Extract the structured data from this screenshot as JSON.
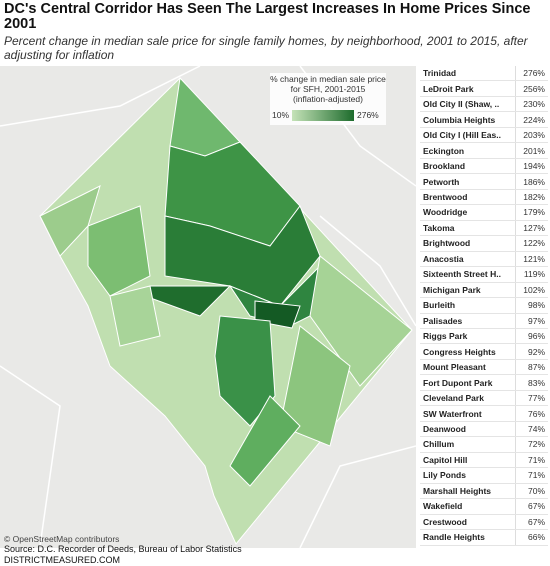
{
  "header": {
    "title": "DC's Central Corridor Has Seen The Largest Increases In Home Prices Since 2001",
    "subtitle": "Percent change in median sale price for single family homes, by neighborhood, 2001 to 2015, after adjusting for inflation"
  },
  "legend": {
    "title": [
      "% change in median sale price",
      "for SFH, 2001-2015",
      "(inflation-adjusted)"
    ],
    "min": "10%",
    "max": "276%"
  },
  "map": {
    "attribution": "© OpenStreetMap contributors"
  },
  "table": {
    "rows": [
      [
        "Trinidad",
        "276%"
      ],
      [
        "LeDroit Park",
        "256%"
      ],
      [
        "Old City II (Shaw, ..",
        "230%"
      ],
      [
        "Columbia Heights",
        "224%"
      ],
      [
        "Old City I (Hill Eas..",
        "203%"
      ],
      [
        "Eckington",
        "201%"
      ],
      [
        "Brookland",
        "194%"
      ],
      [
        "Petworth",
        "186%"
      ],
      [
        "Brentwood",
        "182%"
      ],
      [
        "Woodridge",
        "179%"
      ],
      [
        "Takoma",
        "127%"
      ],
      [
        "Brightwood",
        "122%"
      ],
      [
        "Anacostia",
        "121%"
      ],
      [
        "Sixteenth Street H..",
        "119%"
      ],
      [
        "Michigan Park",
        "102%"
      ],
      [
        "Burleith",
        "98%"
      ],
      [
        "Palisades",
        "97%"
      ],
      [
        "Riggs Park",
        "96%"
      ],
      [
        "Congress Heights",
        "92%"
      ],
      [
        "Mount Pleasant",
        "87%"
      ],
      [
        "Fort Dupont Park",
        "83%"
      ],
      [
        "Cleveland Park",
        "77%"
      ],
      [
        "SW Waterfront",
        "76%"
      ],
      [
        "Deanwood",
        "74%"
      ],
      [
        "Chillum",
        "72%"
      ],
      [
        "Capitol Hill",
        "71%"
      ],
      [
        "Lily Ponds",
        "71%"
      ],
      [
        "Marshall Heights",
        "70%"
      ],
      [
        "Wakefield",
        "67%"
      ],
      [
        "Crestwood",
        "67%"
      ],
      [
        "Randle Heights",
        "66%"
      ]
    ]
  },
  "footer": {
    "source": "Source: D.C. Recorder of Deeds, Bureau of Labor Statistics",
    "site": "DISTRICTMEASURED.COM"
  }
}
